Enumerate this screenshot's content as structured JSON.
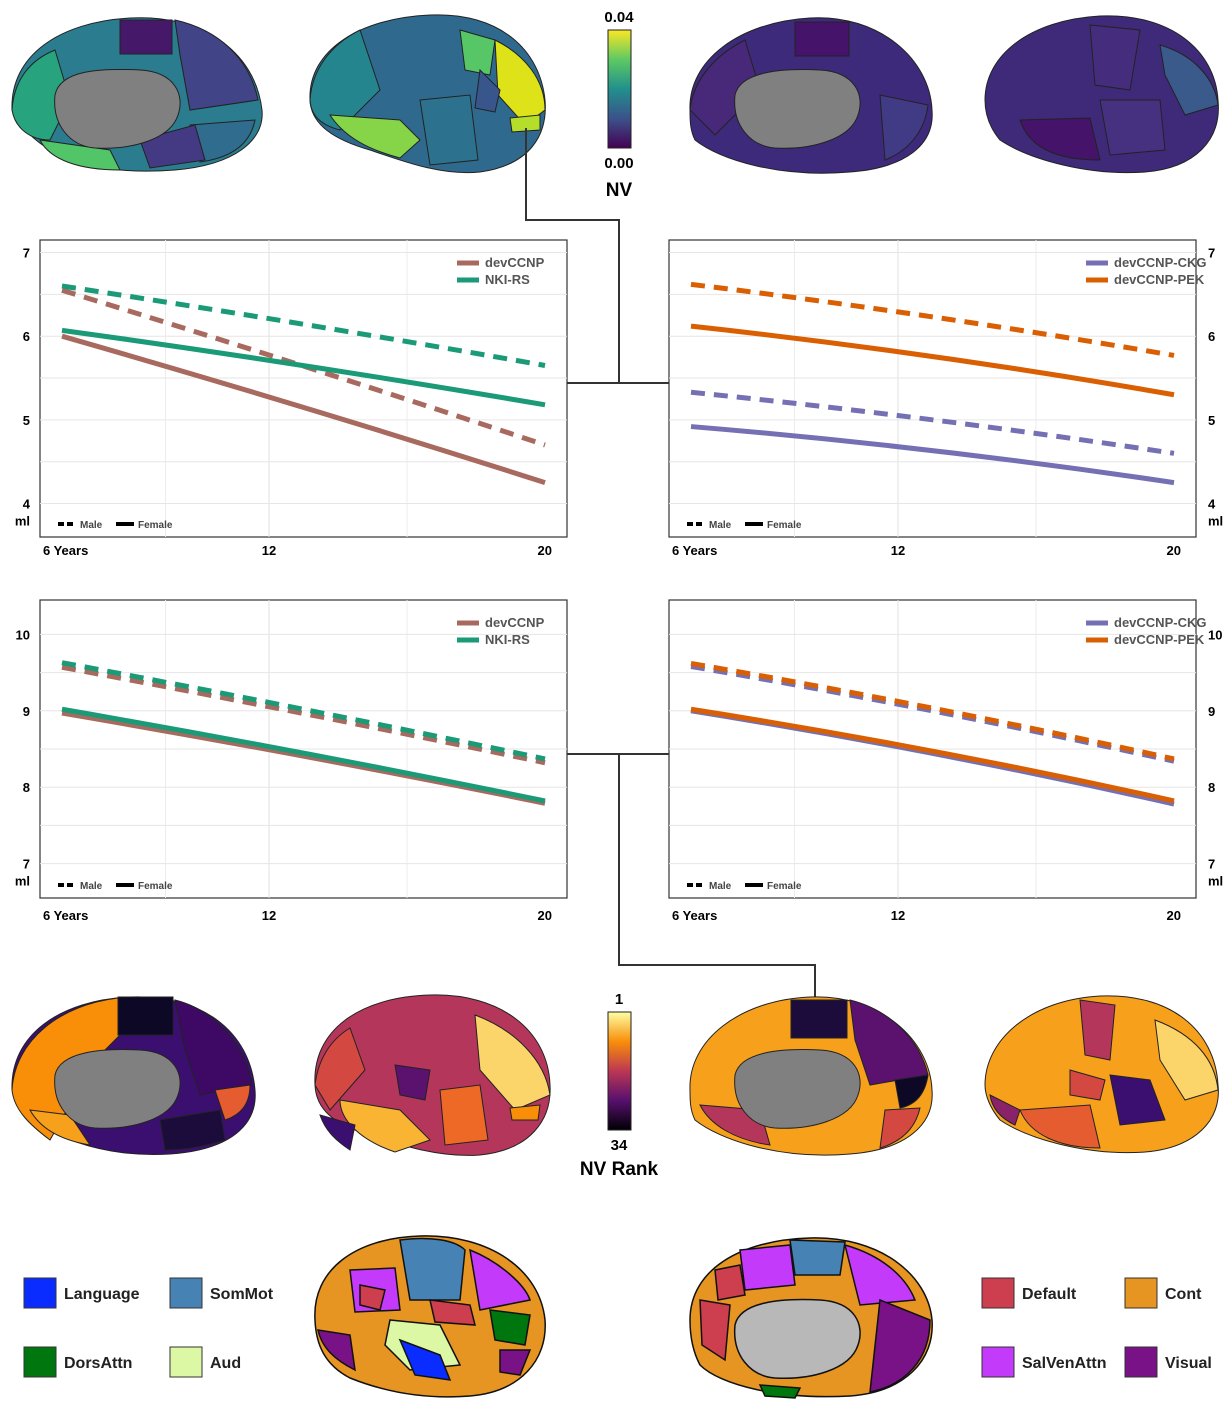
{
  "nv_colorbar": {
    "max": "0.04",
    "min": "0.00",
    "label": "NV"
  },
  "rank_colorbar": {
    "top": "1",
    "bottom": "34",
    "label": "NV Rank"
  },
  "line_styles": {
    "male": "Male",
    "female": "Female"
  },
  "colors": {
    "devCCNP": "#a86a5e",
    "NKI-RS": "#1b9a77",
    "devCCNP-CKG": "#7570b3",
    "devCCNP-PEK": "#d95f02"
  },
  "network_legend": [
    {
      "name": "Language",
      "color": "#0a2cff"
    },
    {
      "name": "SomMot",
      "color": "#4682b4"
    },
    {
      "name": "DorsAttn",
      "color": "#00760e"
    },
    {
      "name": "Aud",
      "color": "#dcf8a4"
    },
    {
      "name": "Default",
      "color": "#cd3e4e"
    },
    {
      "name": "Cont",
      "color": "#e69422"
    },
    {
      "name": "SalVenAttn",
      "color": "#c43afa"
    },
    {
      "name": "Visual",
      "color": "#781286"
    }
  ],
  "chart_data": [
    {
      "type": "line",
      "x_ticks": [
        "6 Years",
        "12",
        "20"
      ],
      "x_tick_values": [
        6,
        12,
        20
      ],
      "xlim": [
        6,
        20
      ],
      "y_ticks": [
        "7",
        "6",
        "5",
        "4"
      ],
      "y_tick_values": [
        7,
        6,
        5,
        4
      ],
      "ylabel": "ml",
      "ylim": [
        3.6,
        7.15
      ],
      "legend": "top-right",
      "series": [
        {
          "name": "devCCNP",
          "sex": "Male",
          "x": [
            6,
            20
          ],
          "y": [
            6.55,
            4.7
          ]
        },
        {
          "name": "devCCNP",
          "sex": "Female",
          "x": [
            6,
            20
          ],
          "y": [
            6.0,
            4.25
          ]
        },
        {
          "name": "NKI-RS",
          "sex": "Male",
          "x": [
            6,
            20
          ],
          "y": [
            6.6,
            5.65
          ]
        },
        {
          "name": "NKI-RS",
          "sex": "Female",
          "x": [
            6,
            20
          ],
          "y": [
            6.07,
            5.18
          ]
        }
      ]
    },
    {
      "type": "line",
      "x_ticks": [
        "6 Years",
        "12",
        "20"
      ],
      "x_tick_values": [
        6,
        12,
        20
      ],
      "xlim": [
        6,
        20
      ],
      "y_ticks": [
        "7",
        "6",
        "5",
        "4"
      ],
      "y_tick_values": [
        7,
        6,
        5,
        4
      ],
      "ylabel": "ml",
      "ylim": [
        3.6,
        7.15
      ],
      "legend": "top-right",
      "series": [
        {
          "name": "devCCNP-CKG",
          "sex": "Male",
          "x": [
            6,
            20
          ],
          "y": [
            5.33,
            4.6
          ]
        },
        {
          "name": "devCCNP-CKG",
          "sex": "Female",
          "x": [
            6,
            20
          ],
          "y": [
            4.92,
            4.25
          ]
        },
        {
          "name": "devCCNP-PEK",
          "sex": "Male",
          "x": [
            6,
            20
          ],
          "y": [
            6.62,
            5.77
          ]
        },
        {
          "name": "devCCNP-PEK",
          "sex": "Female",
          "x": [
            6,
            20
          ],
          "y": [
            6.12,
            5.3
          ]
        }
      ]
    },
    {
      "type": "line",
      "x_ticks": [
        "6 Years",
        "12",
        "20"
      ],
      "x_tick_values": [
        6,
        12,
        20
      ],
      "xlim": [
        6,
        20
      ],
      "y_ticks": [
        "10",
        "9",
        "8",
        "7"
      ],
      "y_tick_values": [
        10,
        9,
        8,
        7
      ],
      "ylabel": "ml",
      "ylim": [
        6.55,
        10.45
      ],
      "legend": "top-right",
      "series": [
        {
          "name": "devCCNP",
          "sex": "Male",
          "x": [
            6,
            20
          ],
          "y": [
            9.57,
            8.32
          ]
        },
        {
          "name": "devCCNP",
          "sex": "Female",
          "x": [
            6,
            20
          ],
          "y": [
            8.97,
            7.79
          ]
        },
        {
          "name": "NKI-RS",
          "sex": "Male",
          "x": [
            6,
            20
          ],
          "y": [
            9.63,
            8.37
          ]
        },
        {
          "name": "NKI-RS",
          "sex": "Female",
          "x": [
            6,
            20
          ],
          "y": [
            9.02,
            7.82
          ]
        }
      ]
    },
    {
      "type": "line",
      "x_ticks": [
        "6 Years",
        "12",
        "20"
      ],
      "x_tick_values": [
        6,
        12,
        20
      ],
      "xlim": [
        6,
        20
      ],
      "y_ticks": [
        "10",
        "9",
        "8",
        "7"
      ],
      "y_tick_values": [
        10,
        9,
        8,
        7
      ],
      "ylabel": "ml",
      "ylim": [
        6.55,
        10.45
      ],
      "legend": "top-right",
      "series": [
        {
          "name": "devCCNP-CKG",
          "sex": "Male",
          "x": [
            6,
            20
          ],
          "y": [
            9.58,
            8.34
          ]
        },
        {
          "name": "devCCNP-CKG",
          "sex": "Female",
          "x": [
            6,
            20
          ],
          "y": [
            9.0,
            7.78
          ]
        },
        {
          "name": "devCCNP-PEK",
          "sex": "Male",
          "x": [
            6,
            20
          ],
          "y": [
            9.62,
            8.37
          ]
        },
        {
          "name": "devCCNP-PEK",
          "sex": "Female",
          "x": [
            6,
            20
          ],
          "y": [
            9.02,
            7.82
          ]
        }
      ]
    }
  ]
}
